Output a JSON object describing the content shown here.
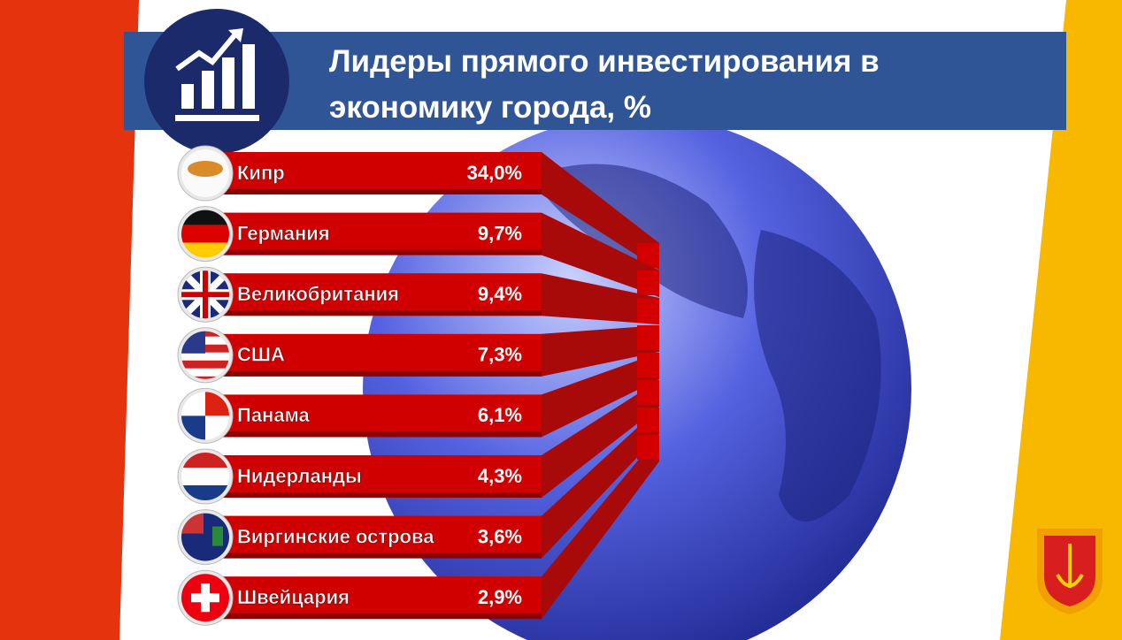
{
  "header": {
    "title": "Лидеры прямого инвестирования в экономику города, %"
  },
  "items": [
    {
      "label": "Кипр",
      "value": "34,0%"
    },
    {
      "label": "Германия",
      "value": "9,7%"
    },
    {
      "label": "Великобритания",
      "value": "9,4%"
    },
    {
      "label": "США",
      "value": "7,3%"
    },
    {
      "label": "Панама",
      "value": "6,1%"
    },
    {
      "label": "Нидерланды",
      "value": "4,3%"
    },
    {
      "label": "Виргинские острова",
      "value": "3,6%"
    },
    {
      "label": "Швейцария",
      "value": "2,9%"
    }
  ]
}
